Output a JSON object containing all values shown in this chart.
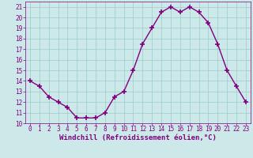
{
  "x": [
    0,
    1,
    2,
    3,
    4,
    5,
    6,
    7,
    8,
    9,
    10,
    11,
    12,
    13,
    14,
    15,
    16,
    17,
    18,
    19,
    20,
    21,
    22,
    23
  ],
  "y": [
    14,
    13.5,
    12.5,
    12,
    11.5,
    10.5,
    10.5,
    10.5,
    11,
    12.5,
    13,
    15,
    17.5,
    19,
    20.5,
    21,
    20.5,
    21,
    20.5,
    19.5,
    17.5,
    15,
    13.5,
    12
  ],
  "line_color": "#800080",
  "marker": "+",
  "marker_size": 4,
  "bg_color": "#cce8e8",
  "grid_color": "#99cccc",
  "xlabel": "Windchill (Refroidissement éolien,°C)",
  "xlim": [
    -0.5,
    23.5
  ],
  "ylim": [
    10,
    21.5
  ],
  "yticks": [
    10,
    11,
    12,
    13,
    14,
    15,
    16,
    17,
    18,
    19,
    20,
    21
  ],
  "xticks": [
    0,
    1,
    2,
    3,
    4,
    5,
    6,
    7,
    8,
    9,
    10,
    11,
    12,
    13,
    14,
    15,
    16,
    17,
    18,
    19,
    20,
    21,
    22,
    23
  ],
  "tick_color": "#800080",
  "label_color": "#800080",
  "tick_fontsize": 5.5,
  "xlabel_fontsize": 6.5,
  "line_width": 1.0
}
